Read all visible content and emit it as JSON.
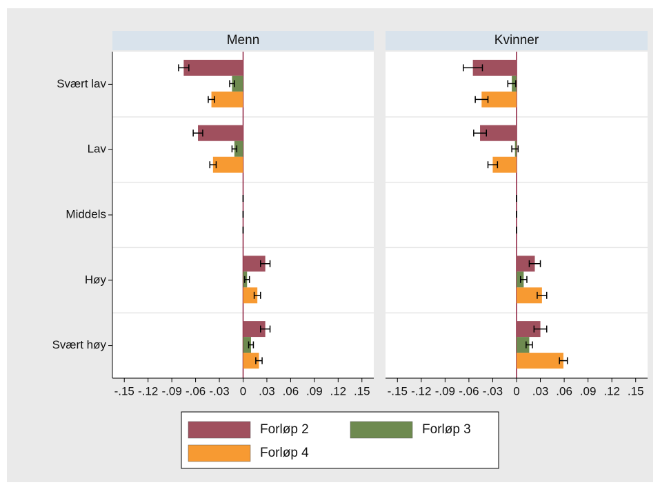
{
  "chart_data": {
    "type": "bar",
    "orientation": "horizontal",
    "categories": [
      "Svært lav",
      "Lav",
      "Middels",
      "Høy",
      "Svært høy"
    ],
    "xlim": [
      -0.165,
      0.165
    ],
    "xticks": [
      {
        "value": -0.15,
        "label": "-.15"
      },
      {
        "value": -0.12,
        "label": "-.12"
      },
      {
        "value": -0.09,
        "label": "-.09"
      },
      {
        "value": -0.06,
        "label": "-.06"
      },
      {
        "value": -0.03,
        "label": "-.03"
      },
      0,
      {
        "value": 0.03,
        "label": ".03"
      },
      {
        "value": 0.06,
        "label": ".06"
      },
      {
        "value": 0.09,
        "label": ".09"
      },
      {
        "value": 0.12,
        "label": ".12"
      },
      {
        "value": 0.15,
        "label": ".15"
      }
    ],
    "zero_line_color": "#8b1a3a",
    "series": [
      {
        "name": "Forløp 2",
        "color": "#a0505e"
      },
      {
        "name": "Forløp 3",
        "color": "#6e8a50"
      },
      {
        "name": "Forløp 4",
        "color": "#f79a32"
      }
    ],
    "panels": [
      {
        "title": "Menn",
        "series": [
          {
            "values": [
              -0.075,
              -0.057,
              0,
              0.028,
              0.028
            ],
            "errors": [
              0.0065,
              0.006,
              0,
              0.006,
              0.006
            ]
          },
          {
            "values": [
              -0.014,
              -0.011,
              0,
              0.005,
              0.01
            ],
            "errors": [
              0.003,
              0.003,
              0,
              0.003,
              0.003
            ]
          },
          {
            "values": [
              -0.04,
              -0.038,
              0,
              0.018,
              0.02
            ],
            "errors": [
              0.004,
              0.004,
              0,
              0.004,
              0.004
            ]
          }
        ]
      },
      {
        "title": "Kvinner",
        "series": [
          {
            "values": [
              -0.055,
              -0.046,
              0,
              0.023,
              0.03
            ],
            "errors": [
              0.012,
              0.008,
              0,
              0.007,
              0.008
            ]
          },
          {
            "values": [
              -0.006,
              -0.002,
              0,
              0.009,
              0.016
            ],
            "errors": [
              0.005,
              0.004,
              0,
              0.004,
              0.004
            ]
          },
          {
            "values": [
              -0.044,
              -0.03,
              0,
              0.032,
              0.059
            ],
            "errors": [
              0.008,
              0.006,
              0,
              0.006,
              0.005
            ]
          }
        ]
      }
    ]
  }
}
